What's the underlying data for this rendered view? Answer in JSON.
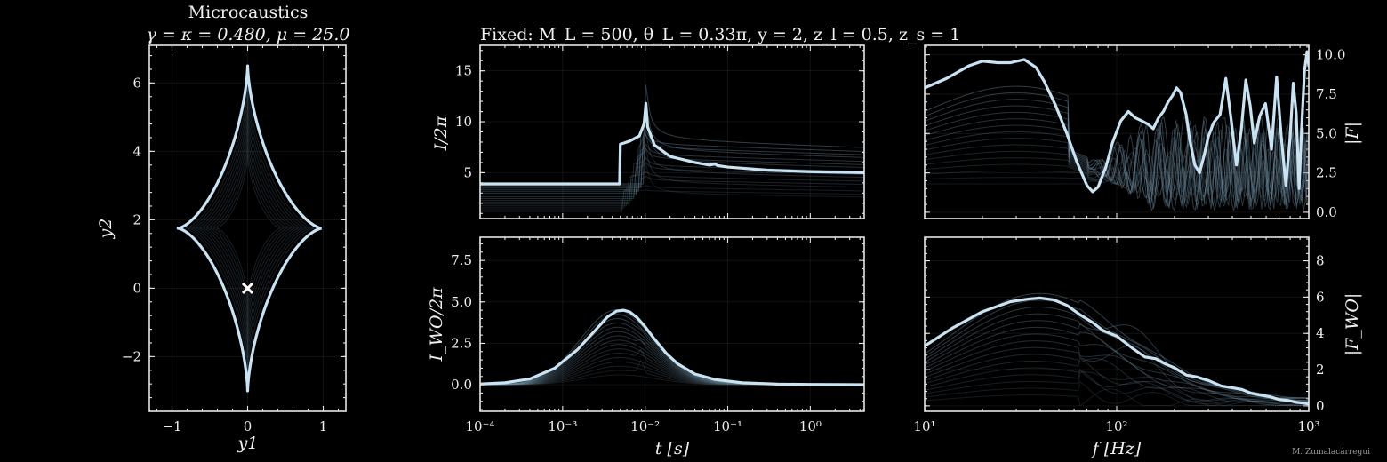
{
  "colors": {
    "background": "#000000",
    "highlight": "#c9e3f3",
    "faint": "#6f8ea3",
    "frame": "#e6e6e6",
    "marker": "#ffffff"
  },
  "titles": {
    "caustic_line1": "Microcaustics",
    "caustic_line2": "γ = κ = 0.480,   μ = 25.0",
    "fixed": "Fixed: M_L = 500, θ_L = 0.33π, y = 2, z_l = 0.5, z_s = 1"
  },
  "credit": "M. Zumalacárregui",
  "chart_data": [
    {
      "id": "caustic",
      "type": "line",
      "title": "Microcaustics  γ = κ = 0.480,  μ = 25.0",
      "xlabel": "y1",
      "ylabel": "y2",
      "xlim": [
        -1.3,
        1.3
      ],
      "ylim": [
        -3.6,
        7.1
      ],
      "xticks": [
        -1,
        0,
        1
      ],
      "xticklabels": [
        "−1",
        "0",
        "1"
      ],
      "yticks": [
        -2,
        0,
        2,
        4,
        6
      ],
      "yticklabels": [
        "−2",
        "0",
        "2",
        "4",
        "6"
      ],
      "grid": true,
      "caustic": {
        "cusps": {
          "top": [
            0,
            6.5
          ],
          "bottom": [
            0,
            -3.0
          ],
          "left": [
            -0.92,
            1.75
          ],
          "right": [
            0.98,
            1.75
          ]
        }
      },
      "source_marker": {
        "x": 0,
        "y": 0,
        "symbol": "x"
      }
    },
    {
      "id": "amp_geo",
      "type": "line",
      "title": "Fixed: M_L = 500, θ_L = 0.33π, y = 2, z_l = 0.5, z_s = 1",
      "xlabel": "",
      "ylabel": "I/2π",
      "xscale": "log",
      "xlim": [
        0.0001,
        4.5
      ],
      "ylim": [
        0.5,
        17.5
      ],
      "yticks": [
        5,
        10,
        15
      ],
      "yticklabels": [
        "5",
        "10",
        "15"
      ],
      "grid": true,
      "highlight_series": {
        "x": [
          0.0001,
          0.0049,
          0.005,
          0.0055,
          0.0065,
          0.0085,
          0.0097,
          0.0102,
          0.0107,
          0.013,
          0.02,
          0.04,
          0.06,
          0.07,
          0.075,
          0.1,
          0.3,
          1,
          4.5
        ],
        "y": [
          3.9,
          3.9,
          7.8,
          7.9,
          8.1,
          8.6,
          9.8,
          11.8,
          9.5,
          7.7,
          6.6,
          6.0,
          5.75,
          5.85,
          5.7,
          5.55,
          5.25,
          5.1,
          5.0
        ]
      }
    },
    {
      "id": "amp_wo",
      "type": "line",
      "xlabel": "t [s]",
      "ylabel": "I_WO/2π",
      "xscale": "log",
      "xlim": [
        0.0001,
        4.5
      ],
      "ylim": [
        -1.6,
        8.9
      ],
      "xticks": [
        0.0001,
        0.001,
        0.01,
        0.1,
        1
      ],
      "xticklabels": [
        "10⁻⁴",
        "10⁻³",
        "10⁻²",
        "10⁻¹",
        "10⁰"
      ],
      "yticks": [
        0,
        2.5,
        5,
        7.5
      ],
      "yticklabels": [
        "0.0",
        "2.5",
        "5.0",
        "7.5"
      ],
      "grid": true,
      "highlight_series": {
        "x": [
          0.0001,
          0.0002,
          0.0004,
          0.0008,
          0.0015,
          0.0025,
          0.0035,
          0.0045,
          0.0055,
          0.0065,
          0.008,
          0.01,
          0.013,
          0.018,
          0.025,
          0.04,
          0.07,
          0.15,
          0.4,
          1,
          4.5
        ],
        "y": [
          0.05,
          0.12,
          0.35,
          1.0,
          2.1,
          3.3,
          4.1,
          4.45,
          4.5,
          4.4,
          4.05,
          3.5,
          2.75,
          1.9,
          1.25,
          0.65,
          0.32,
          0.12,
          0.04,
          0.02,
          0.01
        ]
      }
    },
    {
      "id": "amp_factor",
      "type": "line",
      "xlabel": "",
      "ylabel": "|F|",
      "xscale": "log",
      "yaxis_side": "right",
      "xlim": [
        10,
        1000
      ],
      "ylim": [
        -0.4,
        10.6
      ],
      "yticks": [
        0,
        2.5,
        5,
        7.5,
        10
      ],
      "yticklabels": [
        "0.0",
        "2.5",
        "5.0",
        "7.5",
        "10.0"
      ],
      "grid": true,
      "highlight_series": {
        "x": [
          10,
          13,
          17,
          20,
          24,
          28,
          33,
          38,
          42,
          48,
          55,
          62,
          70,
          75,
          80,
          88,
          95,
          105,
          115,
          125,
          135,
          145,
          155,
          165,
          175,
          185,
          195,
          205,
          215,
          230,
          240,
          255,
          270,
          285,
          300,
          320,
          345,
          370,
          395,
          420,
          445,
          470,
          495,
          520,
          555,
          595,
          640,
          680,
          720,
          760,
          800,
          830,
          860,
          890,
          920,
          950,
          980,
          1000
        ],
        "y": [
          7.9,
          8.5,
          9.3,
          9.6,
          9.5,
          9.5,
          9.7,
          9.2,
          8.3,
          6.8,
          5.0,
          3.2,
          1.7,
          1.3,
          1.6,
          2.9,
          4.4,
          5.8,
          6.4,
          6.0,
          5.8,
          5.6,
          5.3,
          6.0,
          6.4,
          7.0,
          7.4,
          7.9,
          7.6,
          6.2,
          4.6,
          3.0,
          2.5,
          3.6,
          4.8,
          5.7,
          6.2,
          8.5,
          5.8,
          3.0,
          5.2,
          8.4,
          6.8,
          4.4,
          6.1,
          6.9,
          4.0,
          8.6,
          4.7,
          1.7,
          4.8,
          8.2,
          6.3,
          1.5,
          5.6,
          9.0,
          10.2,
          9.3
        ]
      }
    },
    {
      "id": "amp_factor_wo",
      "type": "line",
      "xlabel": "f [Hz]",
      "ylabel": "|F_WO|",
      "xscale": "log",
      "yaxis_side": "right",
      "xlim": [
        10,
        1000
      ],
      "ylim": [
        -0.3,
        9.3
      ],
      "xticks": [
        10,
        100,
        1000
      ],
      "xticklabels": [
        "10¹",
        "10²",
        "10³"
      ],
      "yticks": [
        0,
        2,
        4,
        6,
        8
      ],
      "yticklabels": [
        "0",
        "2",
        "4",
        "6",
        "8"
      ],
      "grid": true,
      "highlight_series": {
        "x": [
          10,
          14,
          20,
          28,
          35,
          40,
          47,
          55,
          65,
          75,
          85,
          100,
          120,
          140,
          160,
          180,
          200,
          230,
          260,
          300,
          350,
          400,
          450,
          500,
          560,
          630,
          700,
          780,
          860,
          940,
          1000
        ],
        "y": [
          3.3,
          4.3,
          5.2,
          5.75,
          5.9,
          5.95,
          5.85,
          5.55,
          5.0,
          4.6,
          4.15,
          3.85,
          3.2,
          2.7,
          2.6,
          2.3,
          2.1,
          1.7,
          1.6,
          1.4,
          1.1,
          1.0,
          0.9,
          0.7,
          0.6,
          0.5,
          0.35,
          0.3,
          0.2,
          0.15,
          0.1
        ]
      }
    }
  ]
}
